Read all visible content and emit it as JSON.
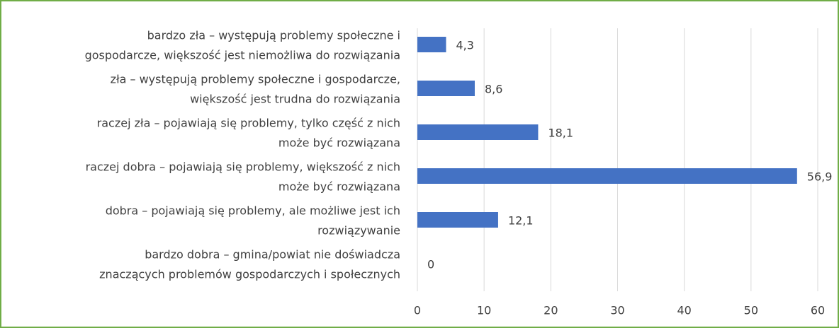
{
  "chart_data": {
    "type": "barh",
    "categories": [
      [
        "bardzo zła – występują problemy społeczne i",
        "gospodarcze, większość jest niemożliwa do rozwiązania"
      ],
      [
        "zła – występują problemy społeczne i gospodarcze,",
        "większość jest trudna do rozwiązania"
      ],
      [
        "raczej zła – pojawiają się problemy, tylko część z nich",
        "może być rozwiązana"
      ],
      [
        "raczej dobra – pojawiają się problemy, większość z nich",
        "może być rozwiązana"
      ],
      [
        "dobra – pojawiają się problemy, ale możliwe jest ich",
        "rozwiązywanie"
      ],
      [
        "bardzo dobra – gmina/powiat nie doświadcza",
        "znaczących problemów gospodarczych i społecznych"
      ]
    ],
    "values": [
      4.3,
      8.6,
      18.1,
      56.9,
      12.1,
      0
    ],
    "value_labels": [
      "4,3",
      "8,6",
      "18,1",
      "56,9",
      "12,1",
      "0"
    ],
    "color": "#4472c4",
    "xlim": [
      0,
      60
    ],
    "xticks": [
      0,
      10,
      20,
      30,
      40,
      50,
      60
    ],
    "grid": true
  }
}
